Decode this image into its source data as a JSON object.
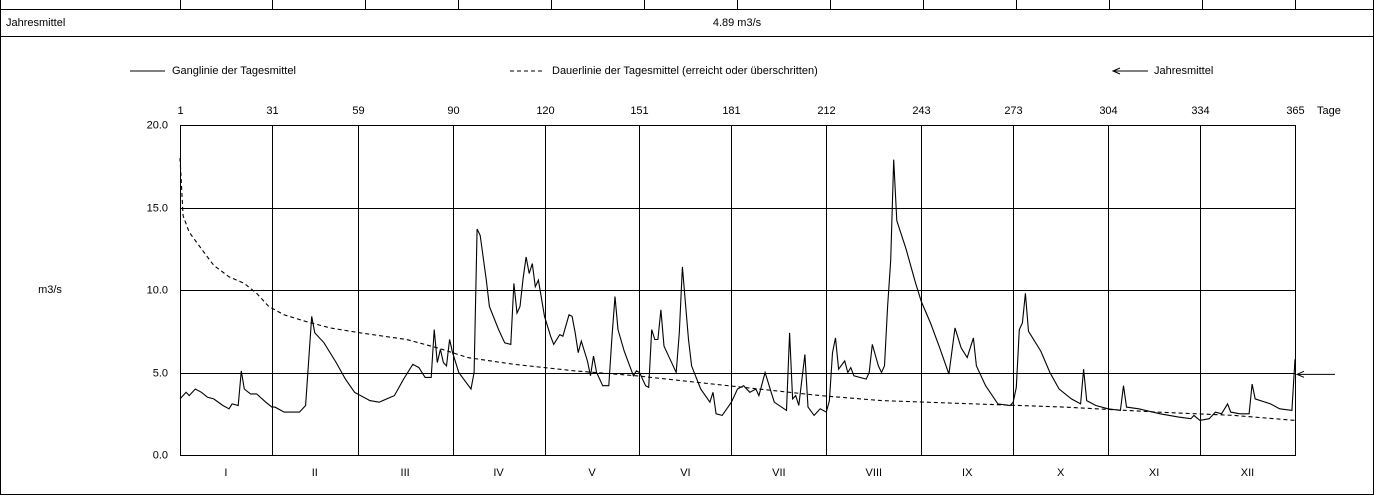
{
  "table": {
    "row_label": "Jahresmittel",
    "row_value": "4.89 m3/s"
  },
  "chart_data": {
    "type": "line",
    "x_label": "Tage",
    "y_label": "m3/s",
    "xlim": [
      1,
      365
    ],
    "xticks": [
      1,
      31,
      59,
      90,
      120,
      151,
      181,
      212,
      243,
      273,
      304,
      334,
      365
    ],
    "months": [
      "I",
      "II",
      "III",
      "IV",
      "V",
      "VI",
      "VII",
      "VIII",
      "IX",
      "X",
      "XI",
      "XII"
    ],
    "ylim": [
      0,
      20
    ],
    "yticks": [
      {
        "value": 0,
        "label": "0.0"
      },
      {
        "value": 5,
        "label": "5.0"
      },
      {
        "value": 10,
        "label": "10.0"
      },
      {
        "value": 15,
        "label": "15.0"
      },
      {
        "value": 20,
        "label": "20.0"
      }
    ],
    "grid": true,
    "series": [
      {
        "name": "Ganglinie der Tagesmittel",
        "color": "#000000",
        "style": "solid",
        "x": [
          1,
          3,
          4,
          6,
          8,
          10,
          12,
          15,
          17,
          18,
          20,
          21,
          22,
          24,
          26,
          29,
          31,
          32,
          35,
          40,
          42,
          44,
          45,
          48,
          52,
          55,
          58,
          63,
          66,
          71,
          74,
          77,
          79,
          81,
          83,
          84,
          85,
          86,
          87,
          88,
          89,
          90,
          92,
          94,
          96,
          97,
          98,
          99,
          101,
          102,
          105,
          107,
          109,
          110,
          111,
          112,
          113,
          114,
          115,
          116,
          117,
          118,
          120,
          122,
          123,
          125,
          126,
          128,
          129,
          130,
          131,
          132,
          134,
          135,
          136,
          137,
          139,
          141,
          142,
          143,
          144,
          146,
          149,
          150,
          151,
          153,
          154,
          155,
          156,
          157,
          158,
          159,
          161,
          163,
          164,
          165,
          167,
          168,
          171,
          174,
          175,
          176,
          178,
          181,
          183,
          185,
          187,
          189,
          190,
          192,
          194,
          195,
          199,
          200,
          201,
          202,
          203,
          205,
          206,
          208,
          210,
          212,
          213,
          214,
          215,
          216,
          218,
          219,
          220,
          221,
          225,
          226,
          227,
          229,
          230,
          231,
          232,
          233,
          234,
          235,
          238,
          241,
          243,
          246,
          249,
          252,
          254,
          256,
          258,
          260,
          261,
          264,
          268,
          272,
          273,
          274,
          275,
          276,
          277,
          278,
          282,
          285,
          288,
          292,
          295,
          296,
          297,
          300,
          304,
          308,
          309,
          310,
          314,
          321,
          327,
          331,
          332,
          334,
          337,
          339,
          341,
          343,
          344,
          347,
          350,
          351,
          352,
          357,
          360,
          364,
          365
        ],
        "values": [
          3.4,
          3.8,
          3.6,
          4.0,
          3.8,
          3.5,
          3.4,
          3.0,
          2.8,
          3.1,
          3.0,
          5.1,
          4.0,
          3.7,
          3.7,
          3.2,
          2.9,
          2.9,
          2.6,
          2.6,
          3.0,
          8.4,
          7.4,
          6.8,
          5.6,
          4.6,
          3.8,
          3.3,
          3.2,
          3.6,
          4.6,
          5.5,
          5.3,
          4.7,
          4.7,
          7.6,
          5.6,
          6.4,
          5.6,
          5.4,
          7.0,
          6.2,
          5.0,
          4.5,
          4.0,
          5.0,
          13.7,
          13.3,
          10.6,
          9.0,
          7.6,
          6.8,
          6.7,
          10.4,
          8.6,
          9.0,
          10.7,
          12.0,
          11.0,
          11.6,
          10.2,
          10.6,
          8.4,
          7.2,
          6.7,
          7.3,
          7.2,
          8.5,
          8.4,
          7.4,
          6.2,
          6.9,
          5.7,
          4.8,
          6.0,
          5.0,
          4.2,
          4.2,
          7.1,
          9.6,
          7.6,
          6.3,
          4.8,
          5.1,
          5.0,
          4.2,
          4.1,
          7.6,
          7.0,
          7.0,
          8.8,
          6.6,
          5.8,
          5.0,
          7.4,
          11.4,
          7.0,
          5.4,
          4.0,
          3.2,
          3.8,
          2.5,
          2.4,
          3.2,
          4.0,
          4.2,
          3.8,
          4.0,
          3.6,
          5.0,
          3.8,
          3.2,
          2.7,
          7.4,
          3.4,
          3.6,
          3.0,
          6.1,
          2.9,
          2.4,
          2.8,
          2.6,
          3.3,
          6.2,
          7.1,
          5.2,
          5.7,
          5.0,
          5.3,
          4.8,
          4.6,
          5.0,
          6.7,
          5.4,
          5.0,
          5.4,
          9.0,
          11.8,
          17.9,
          14.2,
          12.5,
          10.5,
          9.3,
          8.0,
          6.5,
          4.9,
          7.7,
          6.5,
          5.9,
          7.1,
          5.4,
          4.2,
          3.1,
          3.0,
          3.2,
          4.1,
          7.6,
          8.0,
          9.8,
          7.5,
          6.3,
          5.0,
          4.0,
          3.4,
          3.1,
          5.2,
          3.3,
          3.0,
          2.8,
          2.7,
          4.2,
          2.9,
          2.8,
          2.5,
          2.3,
          2.2,
          2.4,
          2.1,
          2.2,
          2.6,
          2.5,
          3.1,
          2.6,
          2.5,
          2.5,
          4.3,
          3.4,
          3.1,
          2.8,
          2.7,
          5.8
        ]
      },
      {
        "name": "Dauerlinie der Tagesmittel (erreicht oder überschritten)",
        "color": "#000000",
        "style": "dashed",
        "x": [
          1,
          2,
          4,
          8,
          12,
          17,
          22,
          26,
          30,
          35,
          42,
          50,
          60,
          75,
          85,
          95,
          110,
          130,
          150,
          170,
          190,
          210,
          230,
          260,
          290,
          320,
          345,
          365
        ],
        "values": [
          18.0,
          14.5,
          13.5,
          12.5,
          11.5,
          10.8,
          10.4,
          9.8,
          9.0,
          8.5,
          8.1,
          7.7,
          7.4,
          7.0,
          6.5,
          5.9,
          5.5,
          5.1,
          4.8,
          4.4,
          4.0,
          3.6,
          3.3,
          3.1,
          2.9,
          2.6,
          2.4,
          2.1
        ]
      }
    ],
    "annual_mean": {
      "name": "Jahresmittel",
      "value": 4.89
    }
  }
}
